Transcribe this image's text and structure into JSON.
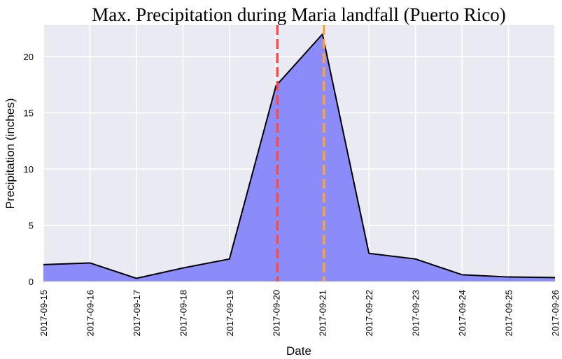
{
  "chart_data": {
    "type": "area",
    "title": "Max. Precipitation during Maria landfall (Puerto Rico)",
    "xlabel": "Date",
    "ylabel": "Precipitation (inches)",
    "x": [
      "2017-09-15",
      "2017-09-16",
      "2017-09-17",
      "2017-09-18",
      "2017-09-19",
      "2017-09-20",
      "2017-09-21",
      "2017-09-22",
      "2017-09-23",
      "2017-09-24",
      "2017-09-25",
      "2017-09-26"
    ],
    "values": [
      1.5,
      1.65,
      0.28,
      1.2,
      2.0,
      17.4,
      22.0,
      2.5,
      2.0,
      0.6,
      0.4,
      0.35
    ],
    "ylim": [
      0,
      22.8
    ],
    "yticks": [
      0,
      5,
      10,
      15,
      20
    ],
    "xtick_labels": [
      "2017-09-15",
      "2017-09-16",
      "2017-09-17",
      "2017-09-18",
      "2017-09-19",
      "2017-09-20",
      "2017-09-21",
      "2017-09-22",
      "2017-09-23",
      "2017-09-24",
      "2017-09-25",
      "2017-09-26"
    ],
    "grid": true,
    "vlines": [
      {
        "x": "2017-09-20",
        "color": "#f54b4b",
        "style": "dashed"
      },
      {
        "x": "2017-09-21",
        "color": "#f5a441",
        "style": "dashed"
      }
    ],
    "colors": {
      "background": "#eaeaf2",
      "fill": "#8b8cf9",
      "line": "#000000",
      "grid": "#ffffff"
    }
  }
}
